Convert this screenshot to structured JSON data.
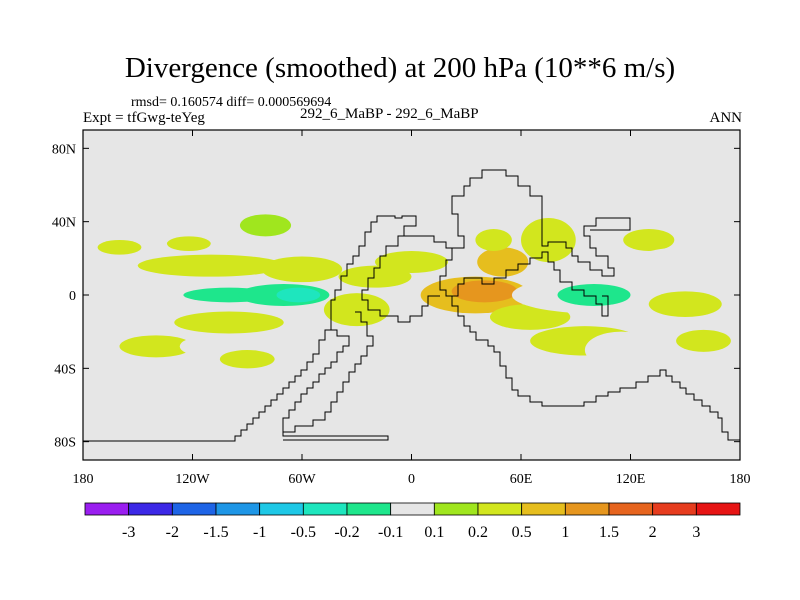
{
  "header": {
    "title": "Divergence (smoothed) at 200 hPa (10**6 m/s)",
    "stats": "rmsd= 0.160574 diff= 0.000569694",
    "experiment": "Expt = tfGwg-teYeg",
    "case": "292_6_MaBP - 292_6_MaBP",
    "season": "ANN"
  },
  "chart_data": {
    "type": "heatmap",
    "title": "Divergence (smoothed) at 200 hPa (10**6 m/s)",
    "xlabel": "",
    "ylabel": "",
    "xlim": [
      -180,
      180
    ],
    "ylim": [
      -90,
      90
    ],
    "x_ticks": [
      -180,
      -120,
      -60,
      0,
      60,
      120,
      180
    ],
    "x_tick_labels": [
      "180",
      "120W",
      "60W",
      "0",
      "60E",
      "120E",
      "180"
    ],
    "y_ticks": [
      80,
      40,
      0,
      -40,
      -80
    ],
    "y_tick_labels": [
      "80N",
      "40N",
      "0",
      "40S",
      "80S"
    ],
    "colorbar": {
      "labels": [
        "-3",
        "-2",
        "-1.5",
        "-1",
        "-0.5",
        "-0.2",
        "-0.1",
        "0.1",
        "0.2",
        "0.5",
        "1",
        "1.5",
        "2",
        "3"
      ],
      "colors": [
        "#9a1ef0",
        "#3c28e6",
        "#1e64e6",
        "#1e96e6",
        "#1ec8e6",
        "#1ee6be",
        "#1ee68c",
        "#e6e6e6",
        "#a0e61e",
        "#d2e61e",
        "#e6be1e",
        "#e6961e",
        "#e6641e",
        "#e63c1e",
        "#e61414"
      ]
    },
    "background_color": "#e6e6e6",
    "patches": [
      {
        "lon": -165,
        "lat": 35,
        "rlon": 10,
        "rlat": 3,
        "level": "-0.1"
      },
      {
        "lon": -160,
        "lat": 26,
        "rlon": 12,
        "rlat": 4,
        "level": "0.2"
      },
      {
        "lon": -135,
        "lat": 42,
        "rlon": 12,
        "rlat": 5,
        "level": "-0.1"
      },
      {
        "lon": -122,
        "lat": 28,
        "rlon": 12,
        "rlat": 4,
        "level": "0.2"
      },
      {
        "lon": -110,
        "lat": 48,
        "rlon": 8,
        "rlat": 4,
        "level": "-0.1"
      },
      {
        "lon": -80,
        "lat": 38,
        "rlon": 14,
        "rlat": 6,
        "level": "0.1"
      },
      {
        "lon": -55,
        "lat": 45,
        "rlon": 10,
        "rlat": 7,
        "level": "-0.1"
      },
      {
        "lon": -150,
        "lat": 12,
        "rlon": 30,
        "rlat": 6,
        "level": "-0.1"
      },
      {
        "lon": -110,
        "lat": 16,
        "rlon": 40,
        "rlat": 6,
        "level": "0.2"
      },
      {
        "lon": -60,
        "lat": 14,
        "rlon": 22,
        "rlat": 7,
        "level": "0.2"
      },
      {
        "lon": -115,
        "lat": 0,
        "rlon": 45,
        "rlat": 6,
        "level": "-0.1"
      },
      {
        "lon": -100,
        "lat": 0,
        "rlon": 25,
        "rlat": 4,
        "level": "-0.2"
      },
      {
        "lon": -70,
        "lat": 0,
        "rlon": 25,
        "rlat": 6,
        "level": "-0.2"
      },
      {
        "lon": -62,
        "lat": 0,
        "rlon": 12,
        "rlat": 4,
        "level": "-0.5"
      },
      {
        "lon": -20,
        "lat": 10,
        "rlon": 20,
        "rlat": 6,
        "level": "0.2"
      },
      {
        "lon": 0,
        "lat": 18,
        "rlon": 20,
        "rlat": 6,
        "level": "0.2"
      },
      {
        "lon": -150,
        "lat": -12,
        "rlon": 35,
        "rlat": 7,
        "level": "-0.1"
      },
      {
        "lon": -100,
        "lat": -15,
        "rlon": 30,
        "rlat": 6,
        "level": "0.2"
      },
      {
        "lon": -140,
        "lat": -28,
        "rlon": 20,
        "rlat": 6,
        "level": "0.2"
      },
      {
        "lon": -115,
        "lat": -28,
        "rlon": 12,
        "rlat": 5,
        "level": "-0.1"
      },
      {
        "lon": -30,
        "lat": -8,
        "rlon": 18,
        "rlat": 9,
        "level": "0.2"
      },
      {
        "lon": -20,
        "lat": -25,
        "rlon": 12,
        "rlat": 5,
        "level": "-0.1"
      },
      {
        "lon": -40,
        "lat": -32,
        "rlon": 10,
        "rlat": 5,
        "level": "-0.1"
      },
      {
        "lon": 35,
        "lat": 0,
        "rlon": 30,
        "rlat": 10,
        "level": "0.5"
      },
      {
        "lon": 40,
        "lat": 2,
        "rlon": 18,
        "rlat": 6,
        "level": "1"
      },
      {
        "lon": 50,
        "lat": 18,
        "rlon": 14,
        "rlat": 8,
        "level": "0.5"
      },
      {
        "lon": 30,
        "lat": 35,
        "rlon": 14,
        "rlat": 10,
        "level": "-0.1"
      },
      {
        "lon": 45,
        "lat": 30,
        "rlon": 10,
        "rlat": 6,
        "level": "0.2"
      },
      {
        "lon": 60,
        "lat": 45,
        "rlon": 10,
        "rlat": 5,
        "level": "-0.1"
      },
      {
        "lon": 65,
        "lat": -12,
        "rlon": 22,
        "rlat": 7,
        "level": "0.2"
      },
      {
        "lon": 75,
        "lat": 30,
        "rlon": 15,
        "rlat": 12,
        "level": "0.2"
      },
      {
        "lon": 100,
        "lat": 0,
        "rlon": 45,
        "rlat": 10,
        "level": "-0.1"
      },
      {
        "lon": 100,
        "lat": 0,
        "rlon": 20,
        "rlat": 6,
        "level": "-0.2"
      },
      {
        "lon": 110,
        "lat": 38,
        "rlon": 20,
        "rlat": 8,
        "level": "-0.1"
      },
      {
        "lon": 130,
        "lat": 30,
        "rlon": 14,
        "rlat": 6,
        "level": "0.2"
      },
      {
        "lon": 95,
        "lat": -25,
        "rlon": 30,
        "rlat": 8,
        "level": "0.2"
      },
      {
        "lon": 115,
        "lat": -30,
        "rlon": 20,
        "rlat": 10,
        "level": "-0.1"
      },
      {
        "lon": 150,
        "lat": 20,
        "rlon": 25,
        "rlat": 6,
        "level": "-0.1"
      },
      {
        "lon": 150,
        "lat": -5,
        "rlon": 20,
        "rlat": 7,
        "level": "0.2"
      },
      {
        "lon": 160,
        "lat": -25,
        "rlon": 15,
        "rlat": 6,
        "level": "0.2"
      },
      {
        "lon": -90,
        "lat": -35,
        "rlon": 15,
        "rlat": 5,
        "level": "0.2"
      }
    ]
  }
}
